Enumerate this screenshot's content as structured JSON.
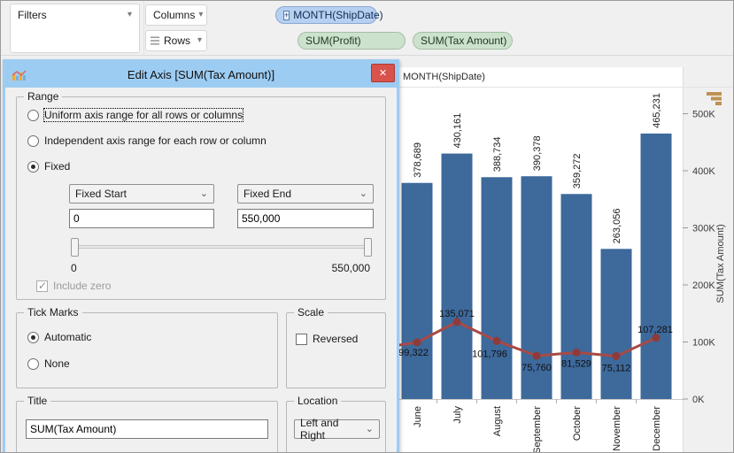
{
  "glyphs": {
    "dropdown_arrow": "▾",
    "combo_arrow": "⌄",
    "close": "✕",
    "expand": "+"
  },
  "shelves": {
    "filters_label": "Filters",
    "columns_label": "Columns",
    "rows_label": "Rows",
    "columns_pills": [
      {
        "label": "MONTH(ShipDate)"
      }
    ],
    "rows_pills": [
      {
        "label": "SUM(Profit)"
      },
      {
        "label": "SUM(Tax Amount)"
      }
    ]
  },
  "dialog": {
    "title": "Edit Axis [SUM(Tax Amount)]",
    "range": {
      "legend": "Range",
      "options": [
        "Uniform axis range for all rows or columns",
        "Independent axis range for each row or column",
        "Fixed"
      ],
      "selected": "Fixed",
      "fixed_start_label": "Fixed Start",
      "fixed_end_label": "Fixed End",
      "fixed_start_value": "0",
      "fixed_end_value": "550,000",
      "slider_min_label": "0",
      "slider_max_label": "550,000",
      "include_zero_label": "Include zero",
      "include_zero_checked": true
    },
    "tick_marks": {
      "legend": "Tick Marks",
      "options": [
        "Automatic",
        "None"
      ],
      "selected": "Automatic"
    },
    "scale": {
      "legend": "Scale",
      "reversed_label": "Reversed",
      "reversed_checked": false
    },
    "title_group": {
      "legend": "Title",
      "value": "SUM(Tax Amount)"
    },
    "location_group": {
      "legend": "Location",
      "value": "Left and Right"
    }
  },
  "chart_data": {
    "type": "bar",
    "subtype": "bar-with-line-overlay",
    "header": "MONTH(ShipDate)",
    "categories": [
      "June",
      "July",
      "August",
      "September",
      "October",
      "November",
      "December"
    ],
    "series": [
      {
        "name": "SUM(Tax Amount)",
        "mark": "bar",
        "color": "#3d699b",
        "values": [
          378689,
          430161,
          388734,
          390378,
          359272,
          263056,
          465231
        ],
        "labels": [
          "378,689",
          "430,161",
          "388,734",
          "390,378",
          "359,272",
          "263,056",
          "465,231"
        ]
      },
      {
        "name": "SUM(Profit)",
        "mark": "line",
        "color": "#a84a46",
        "dot_color": "#8e3b3b",
        "values": [
          99322,
          135071,
          101796,
          75760,
          81529,
          75112,
          107281
        ],
        "labels": [
          "99,322",
          "135,071",
          "101,796",
          "75,760",
          "81,529",
          "75,112",
          "107,281"
        ]
      }
    ],
    "y_axis": {
      "title": "SUM(Tax Amount)",
      "position": "right",
      "ticks": [
        "0K",
        "100K",
        "200K",
        "300K",
        "400K",
        "500K"
      ],
      "tick_values": [
        0,
        100000,
        200000,
        300000,
        400000,
        500000
      ],
      "range": [
        0,
        550000
      ],
      "grid": false
    },
    "legend_position": "none",
    "sort_icon": "sort-descending"
  }
}
